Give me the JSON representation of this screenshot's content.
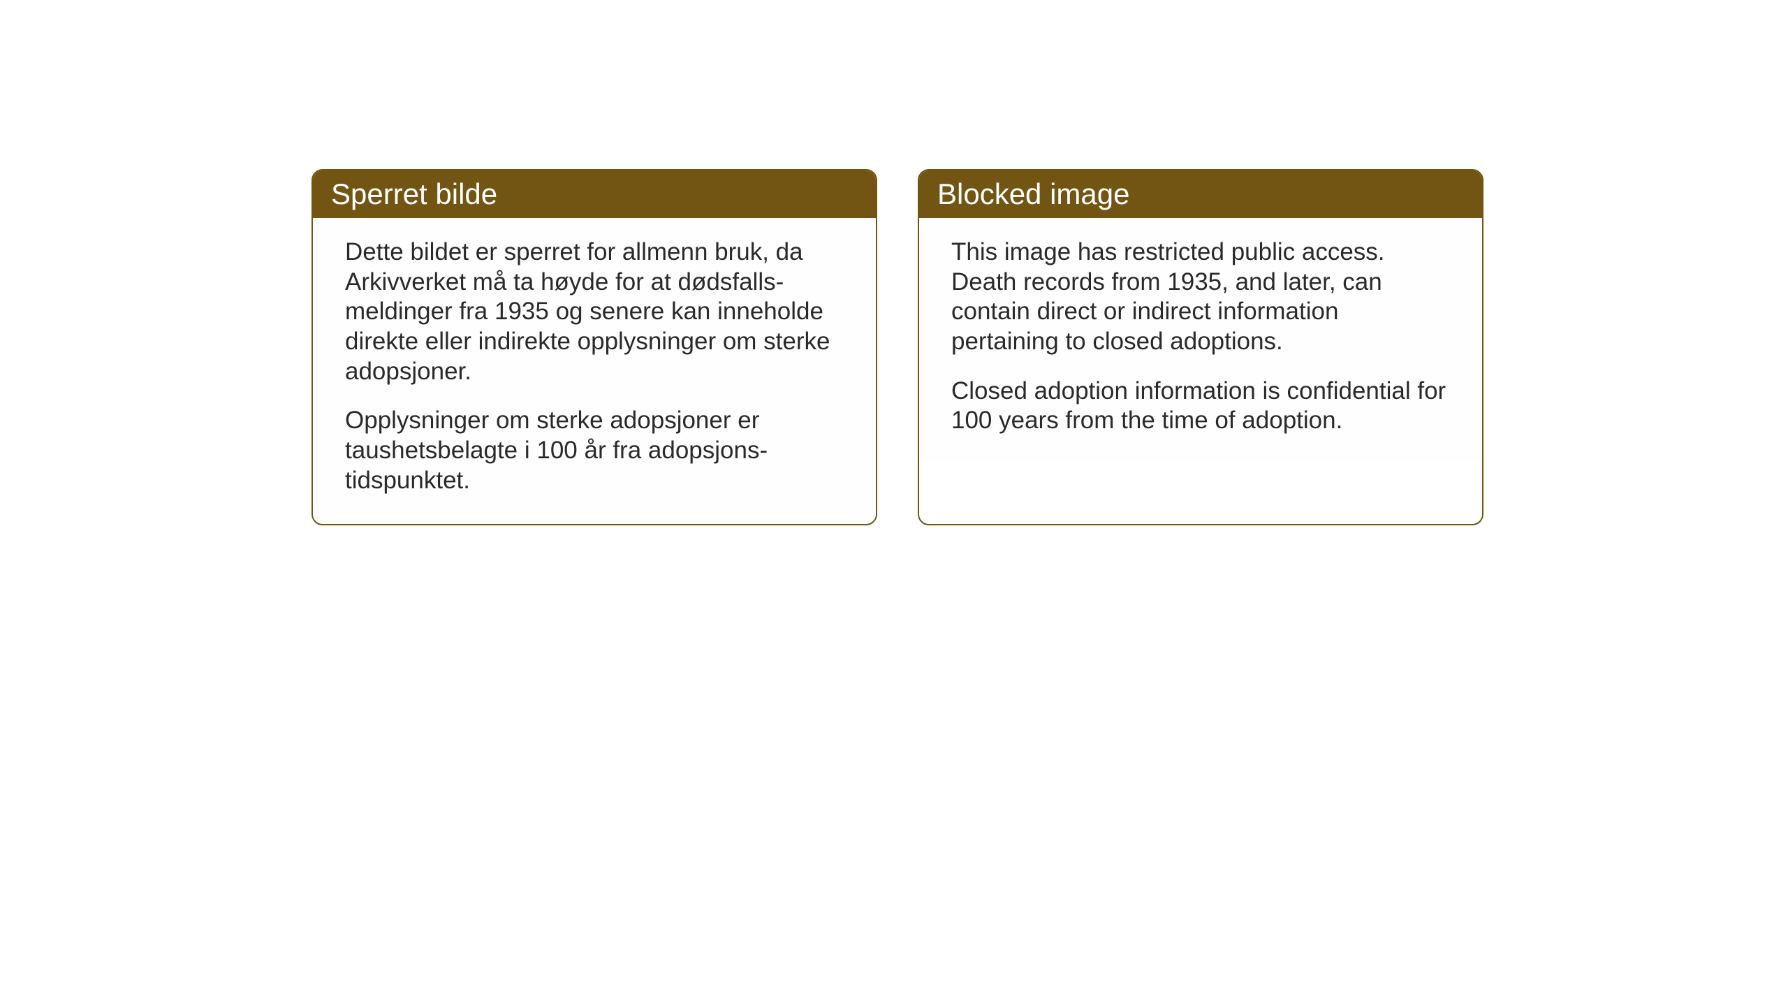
{
  "background_color": "#ffffff",
  "card_border_color": "#725413",
  "card_header_bg": "#725413",
  "card_header_text_color": "#ffffff",
  "card_body_text_color": "#2a2a2a",
  "header_fontsize": 42,
  "body_fontsize": 35,
  "cards": {
    "left": {
      "title": "Sperret bilde",
      "paragraph1": "Dette bildet er sperret for allmenn bruk, da Arkivverket må ta høyde for at dødsfalls-meldinger fra 1935 og senere kan inneholde direkte eller indirekte opplysninger om sterke adopsjoner.",
      "paragraph2": "Opplysninger om sterke adopsjoner er taushetsbelagte i 100 år fra adopsjons-tidspunktet."
    },
    "right": {
      "title": "Blocked image",
      "paragraph1": "This image has restricted public access. Death records from 1935, and later, can contain direct or indirect information pertaining to closed adoptions.",
      "paragraph2": "Closed adoption information is confidential for 100 years from the time of adoption."
    }
  }
}
